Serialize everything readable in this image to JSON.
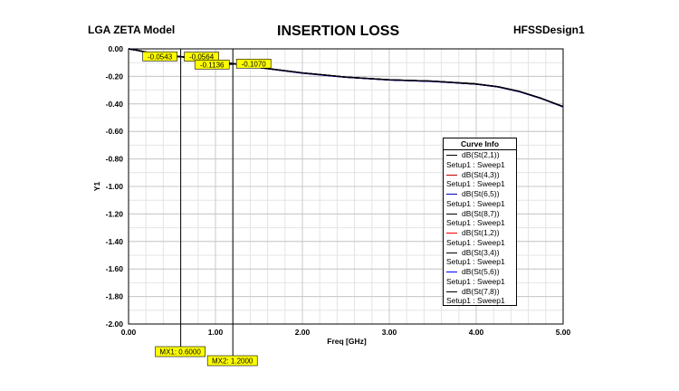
{
  "header": {
    "left": "LGA ZETA Model",
    "title": "INSERTION LOSS",
    "right": "HFSSDesign1"
  },
  "chart_data": {
    "type": "line",
    "title": "INSERTION LOSS",
    "xlabel": "Freq [GHz]",
    "ylabel": "Y1",
    "xlim": [
      0,
      5
    ],
    "ylim": [
      -2,
      0
    ],
    "x_ticks": [
      0,
      1,
      2,
      3,
      4,
      5
    ],
    "x_tick_labels": [
      "0.00",
      "1.00",
      "2.00",
      "3.00",
      "4.00",
      "5.00"
    ],
    "y_ticks": [
      0,
      -0.2,
      -0.4,
      -0.6,
      -0.8,
      -1.0,
      -1.2,
      -1.4,
      -1.6,
      -1.8,
      -2.0
    ],
    "y_tick_labels": [
      "0.00",
      "-0.20",
      "-0.40",
      "-0.60",
      "-0.80",
      "-1.00",
      "-1.20",
      "-1.40",
      "-1.60",
      "-1.80",
      "-2.00"
    ],
    "grid": true,
    "legend_title": "Curve Info",
    "legend_position": "right",
    "x": [
      0.0,
      0.1,
      0.25,
      0.5,
      0.6,
      0.75,
      1.0,
      1.2,
      1.5,
      2.0,
      2.5,
      3.0,
      3.5,
      4.0,
      4.25,
      4.5,
      4.75,
      5.0
    ],
    "series": [
      {
        "name": "dB(St(2,1))",
        "sub": "Setup1 : Sweep1",
        "color": "#000000",
        "values": [
          0.0,
          -0.01,
          -0.03,
          -0.054,
          -0.0564,
          -0.07,
          -0.095,
          -0.107,
          -0.135,
          -0.175,
          -0.205,
          -0.225,
          -0.235,
          -0.255,
          -0.275,
          -0.31,
          -0.36,
          -0.42
        ]
      },
      {
        "name": "dB(St(4,3))",
        "sub": "Setup1 : Sweep1",
        "color": "#c00000",
        "values": [
          0.0,
          -0.01,
          -0.03,
          -0.054,
          -0.0564,
          -0.07,
          -0.095,
          -0.107,
          -0.135,
          -0.175,
          -0.205,
          -0.226,
          -0.236,
          -0.256,
          -0.276,
          -0.311,
          -0.361,
          -0.421
        ]
      },
      {
        "name": "dB(St(6,5))",
        "sub": "Setup1 : Sweep1",
        "color": "#0000c0",
        "values": [
          0.0,
          -0.01,
          -0.03,
          -0.054,
          -0.0564,
          -0.07,
          -0.095,
          -0.107,
          -0.135,
          -0.176,
          -0.206,
          -0.226,
          -0.236,
          -0.256,
          -0.276,
          -0.311,
          -0.361,
          -0.42
        ]
      },
      {
        "name": "dB(St(8,7))",
        "sub": "Setup1 : Sweep1",
        "color": "#000000",
        "values": [
          0.0,
          -0.01,
          -0.03,
          -0.054,
          -0.0564,
          -0.07,
          -0.095,
          -0.107,
          -0.135,
          -0.175,
          -0.205,
          -0.225,
          -0.235,
          -0.255,
          -0.275,
          -0.31,
          -0.36,
          -0.42
        ]
      },
      {
        "name": "dB(St(1,2))",
        "sub": "Setup1 : Sweep1",
        "color": "#ff0000",
        "values": [
          0.0,
          -0.01,
          -0.03,
          -0.054,
          -0.0564,
          -0.07,
          -0.095,
          -0.107,
          -0.135,
          -0.175,
          -0.205,
          -0.225,
          -0.235,
          -0.255,
          -0.275,
          -0.31,
          -0.36,
          -0.42
        ]
      },
      {
        "name": "dB(St(3,4))",
        "sub": "Setup1 : Sweep1",
        "color": "#000000",
        "values": [
          0.0,
          -0.01,
          -0.03,
          -0.054,
          -0.0564,
          -0.07,
          -0.095,
          -0.107,
          -0.135,
          -0.175,
          -0.205,
          -0.225,
          -0.235,
          -0.255,
          -0.275,
          -0.31,
          -0.36,
          -0.42
        ]
      },
      {
        "name": "dB(St(5,6))",
        "sub": "Setup1 : Sweep1",
        "color": "#0000ff",
        "values": [
          0.0,
          -0.01,
          -0.03,
          -0.054,
          -0.0564,
          -0.07,
          -0.095,
          -0.107,
          -0.135,
          -0.176,
          -0.206,
          -0.226,
          -0.236,
          -0.256,
          -0.276,
          -0.311,
          -0.361,
          -0.422
        ]
      },
      {
        "name": "dB(St(7,8))",
        "sub": "Setup1 : Sweep1",
        "color": "#000000",
        "values": [
          0.0,
          -0.01,
          -0.03,
          -0.054,
          -0.0564,
          -0.07,
          -0.095,
          -0.107,
          -0.135,
          -0.175,
          -0.205,
          -0.225,
          -0.235,
          -0.255,
          -0.275,
          -0.31,
          -0.36,
          -0.42
        ]
      }
    ],
    "markers": [
      {
        "name": "MX1",
        "label": "MX1: 0.6000",
        "x": 0.6,
        "readouts": [
          {
            "text": "-0.0543",
            "value": -0.0543,
            "side": "left"
          },
          {
            "text": "-0.0564",
            "value": -0.0564,
            "side": "right"
          }
        ]
      },
      {
        "name": "MX2",
        "label": "MX2: 1.2000",
        "x": 1.2,
        "readouts": [
          {
            "text": "-0.1136",
            "value": -0.1136,
            "side": "left"
          },
          {
            "text": "-0.1070",
            "value": -0.107,
            "side": "right"
          }
        ]
      }
    ],
    "marker_color": "#ffff00"
  }
}
